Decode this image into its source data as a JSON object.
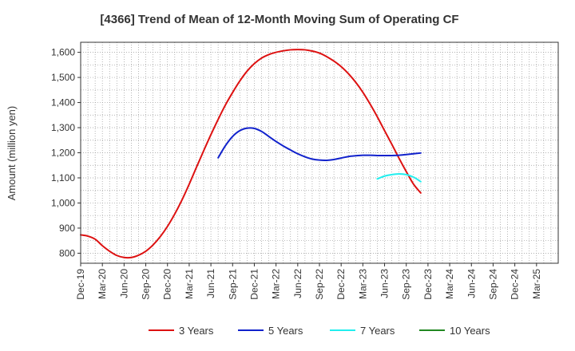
{
  "chart_data": {
    "type": "line",
    "title": "[4366]  Trend of Mean of 12-Month Moving Sum of Operating CF",
    "ylabel": "Amount (million yen)",
    "xlabel": "",
    "ylim": [
      760,
      1640
    ],
    "xlim": [
      0,
      66
    ],
    "yticks": [
      800,
      900,
      1000,
      1100,
      1200,
      1300,
      1400,
      1500,
      1600
    ],
    "ytick_labels": [
      "800",
      "900",
      "1,000",
      "1,100",
      "1,200",
      "1,300",
      "1,400",
      "1,500",
      "1,600"
    ],
    "xtick_labels": [
      "Dec-19",
      "Mar-20",
      "Jun-20",
      "Sep-20",
      "Dec-20",
      "Mar-21",
      "Jun-21",
      "Sep-21",
      "Dec-21",
      "Mar-22",
      "Jun-22",
      "Sep-22",
      "Dec-22",
      "Mar-23",
      "Jun-23",
      "Sep-23",
      "Dec-23",
      "Mar-24",
      "Jun-24",
      "Sep-24",
      "Dec-24",
      "Mar-25"
    ],
    "grid": true,
    "legend_position": "bottom",
    "series": [
      {
        "name": "3 Years",
        "color": "#dd1111",
        "points": [
          [
            0,
            873
          ],
          [
            1,
            868
          ],
          [
            2,
            856
          ],
          [
            3,
            830
          ],
          [
            4,
            808
          ],
          [
            5,
            791
          ],
          [
            6,
            783
          ],
          [
            7,
            783
          ],
          [
            8,
            792
          ],
          [
            9,
            808
          ],
          [
            10,
            833
          ],
          [
            11,
            866
          ],
          [
            12,
            907
          ],
          [
            13,
            956
          ],
          [
            14,
            1012
          ],
          [
            15,
            1075
          ],
          [
            16,
            1142
          ],
          [
            17,
            1208
          ],
          [
            18,
            1272
          ],
          [
            19,
            1333
          ],
          [
            20,
            1390
          ],
          [
            21,
            1440
          ],
          [
            22,
            1486
          ],
          [
            23,
            1525
          ],
          [
            24,
            1555
          ],
          [
            25,
            1577
          ],
          [
            26,
            1591
          ],
          [
            27,
            1600
          ],
          [
            28,
            1606
          ],
          [
            29,
            1610
          ],
          [
            30,
            1611
          ],
          [
            31,
            1610
          ],
          [
            32,
            1605
          ],
          [
            33,
            1597
          ],
          [
            34,
            1583
          ],
          [
            35,
            1565
          ],
          [
            36,
            1543
          ],
          [
            37,
            1515
          ],
          [
            38,
            1481
          ],
          [
            39,
            1441
          ],
          [
            40,
            1394
          ],
          [
            41,
            1343
          ],
          [
            42,
            1288
          ],
          [
            43,
            1234
          ],
          [
            44,
            1178
          ],
          [
            45,
            1125
          ],
          [
            46,
            1075
          ],
          [
            47,
            1040
          ]
        ]
      },
      {
        "name": "5 Years",
        "color": "#1122cc",
        "points": [
          [
            19,
            1180
          ],
          [
            20,
            1228
          ],
          [
            21,
            1265
          ],
          [
            22,
            1288
          ],
          [
            23,
            1298
          ],
          [
            24,
            1297
          ],
          [
            25,
            1285
          ],
          [
            26,
            1265
          ],
          [
            27,
            1245
          ],
          [
            28,
            1227
          ],
          [
            29,
            1211
          ],
          [
            30,
            1196
          ],
          [
            31,
            1184
          ],
          [
            32,
            1175
          ],
          [
            33,
            1171
          ],
          [
            34,
            1170
          ],
          [
            35,
            1173
          ],
          [
            36,
            1179
          ],
          [
            37,
            1185
          ],
          [
            38,
            1188
          ],
          [
            39,
            1190
          ],
          [
            40,
            1190
          ],
          [
            41,
            1189
          ],
          [
            42,
            1189
          ],
          [
            43,
            1189
          ],
          [
            44,
            1190
          ],
          [
            45,
            1193
          ],
          [
            46,
            1196
          ],
          [
            47,
            1199
          ]
        ]
      },
      {
        "name": "7 Years",
        "color": "#22eeee",
        "points": [
          [
            41,
            1096
          ],
          [
            42,
            1107
          ],
          [
            43,
            1113
          ],
          [
            44,
            1116
          ],
          [
            45,
            1113
          ],
          [
            46,
            1103
          ],
          [
            47,
            1085
          ]
        ]
      },
      {
        "name": "10 Years",
        "color": "#228822",
        "points": []
      }
    ]
  }
}
